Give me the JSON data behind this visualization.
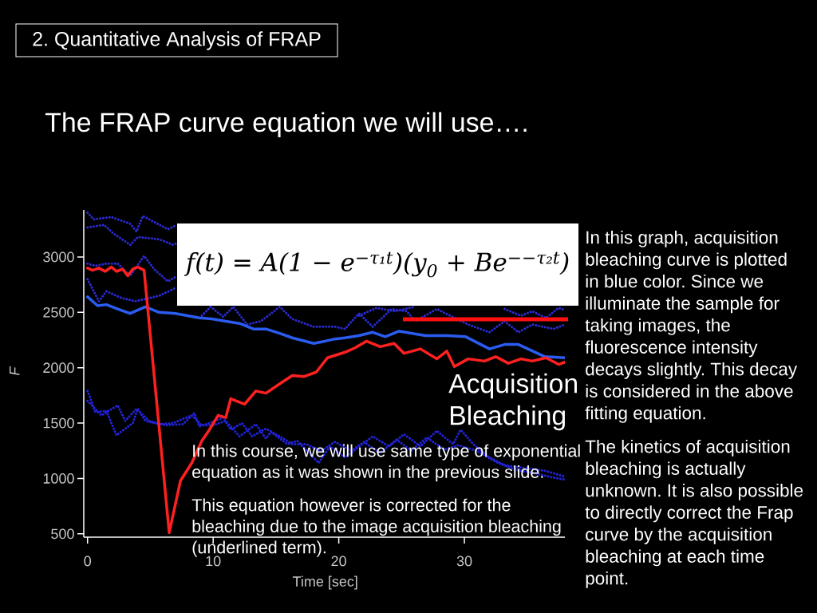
{
  "chart_data": {
    "type": "line",
    "title": "2. Quantitative Analysis of FRAP",
    "subtitle": "The FRAP curve equation we will use….",
    "xlabel": "Time [sec]",
    "ylabel": "F",
    "xlim": [
      -0.3,
      38
    ],
    "ylim": [
      470,
      3425
    ],
    "xticks": [
      0,
      10,
      20,
      30
    ],
    "yticks": [
      500,
      1000,
      1500,
      2000,
      2500,
      3000
    ],
    "grid": false,
    "marker": "none",
    "annotations": [
      "f(t) = A(1 − e$^{−τ₁t}$)(y$_{0}$ + Be$^{−−τ₂t}$)",
      "In this graph, acquisition bleaching curve is plotted in blue color. Since we illuminate the sample for taking images, the fluorescence intensity decays slightly. This decay is considered in the above fitting equation.",
      "The kinetics of acquisition bleaching is actually unknown. It is also possible to directly correct the Frap curve by the acquisition bleaching at each time point.",
      "In this course, we will use same type of exponential equation as it was shown in the previous slide.",
      "This equation however is corrected for the bleaching due to the image acquisition bleaching (underlined term).",
      "Acquisition Bleaching"
    ],
    "series": [
      {
        "color": "#2a2ad0",
        "line_style": "dotted",
        "x": [
          0,
          0.5,
          1.9,
          3.4,
          3.9,
          4.4,
          6.4,
          7.1
        ],
        "values": [
          3400,
          3340,
          3360,
          3300,
          3230,
          3370,
          3250,
          3290
        ]
      },
      {
        "color": "#2a2ad0",
        "line_style": "dotted",
        "x": [
          0,
          1.3,
          2.1,
          3.4,
          4.0,
          5.7,
          6.8,
          7.1
        ],
        "values": [
          3267,
          3290,
          3209,
          3110,
          3180,
          3160,
          3110,
          3125
        ]
      },
      {
        "color": "#2a2ad0",
        "line_style": "dotted",
        "x": [
          0,
          0.6,
          1.5,
          2.4,
          3.4,
          4.5,
          5.3,
          6.4,
          7.0,
          8.0,
          9.1,
          9.8,
          10.8,
          11.6,
          12.7,
          13.8,
          15.3,
          16.3,
          18.0,
          19.7,
          20.5,
          21.6,
          22.7,
          24.2,
          25.4,
          26.1,
          27.8,
          30.3,
          32.0,
          33.2,
          34.3,
          35.4,
          37.1,
          38
        ],
        "values": [
          2940,
          2920,
          2940,
          2940,
          2830,
          3010,
          2890,
          2780,
          2820,
          null,
          2470,
          2550,
          2460,
          2550,
          2390,
          2420,
          2550,
          2440,
          2370,
          2370,
          2350,
          2490,
          2370,
          2530,
          2510,
          2420,
          2530,
          2390,
          2320,
          2420,
          2320,
          2390,
          2350,
          2390
        ]
      },
      {
        "color": "#2a2ad0",
        "line_style": "dotted",
        "x": [
          0,
          0.9,
          1.5,
          2.7,
          3.8,
          5.7,
          7.0,
          8.0,
          21.6,
          23.0,
          24.5,
          26.0,
          27.0,
          33.2,
          34.5,
          35.4,
          36.5,
          37.5,
          38
        ],
        "values": [
          2800,
          2600,
          2690,
          2630,
          2600,
          2650,
          2720,
          null,
          2470,
          2540,
          2510,
          2550,
          null,
          2530,
          2470,
          2510,
          2450,
          2540,
          2520
        ]
      },
      {
        "color": "#2a5cf0",
        "line_style": "solid",
        "x": [
          0,
          0.8,
          1.5,
          2.4,
          3.4,
          4.6,
          5.7,
          7.0,
          8.9,
          10.0,
          11.0,
          12.1,
          13.2,
          14.2,
          15.3,
          16.3,
          18.0,
          18.9,
          19.7,
          20.5,
          21.6,
          22.7,
          23.7,
          24.8,
          26.9,
          28.6,
          30.1,
          32.0,
          33.2,
          34.3,
          36.4,
          38.0
        ],
        "values": [
          2640,
          2560,
          2570,
          2530,
          2490,
          2550,
          2500,
          2490,
          2450,
          2440,
          2420,
          2400,
          2350,
          2350,
          2310,
          2270,
          2220,
          2240,
          2260,
          2270,
          2290,
          2320,
          2280,
          2330,
          2290,
          2290,
          2280,
          2170,
          2210,
          2210,
          2100,
          2090
        ]
      },
      {
        "color": "#2222d8",
        "line_style": "dotted",
        "x": [
          0,
          0.3,
          0.6,
          1.5,
          2.3,
          3.6,
          4.0,
          4.6,
          5.7,
          6.8,
          8.3,
          9.1,
          10.0,
          11.0,
          12.1,
          13.4,
          14.2,
          14.6,
          15.9,
          16.7,
          18.4,
          19.3,
          20.5,
          22.7,
          24.0,
          25.2,
          26.5,
          27.8,
          29.1,
          29.7,
          30.7,
          32.0,
          33.2,
          35.0,
          36.4,
          37.9
        ],
        "values": [
          1790,
          1700,
          1600,
          1610,
          1390,
          1500,
          1630,
          1520,
          1490,
          1500,
          1570,
          1480,
          1480,
          1520,
          1380,
          1490,
          1360,
          1420,
          1310,
          1340,
          1140,
          1290,
          1190,
          1380,
          1290,
          1400,
          1290,
          1430,
          1310,
          1440,
          1310,
          1190,
          1120,
          1090,
          1070,
          1020
        ]
      },
      {
        "color": "#2222d8",
        "line_style": "dotted",
        "x": [
          0,
          1.1,
          2.4,
          3.0,
          3.9,
          4.9,
          6.2,
          7.6,
          8.5,
          8.9,
          9.7,
          10.8,
          11.4,
          12.3,
          13.1,
          14.2,
          15.3,
          16.3,
          17.4,
          18.6,
          19.7,
          21.0,
          22.0,
          23.3,
          24.6,
          25.8,
          27.0,
          28.4,
          29.5,
          31.0,
          32.5,
          34.0,
          35.5,
          37.0,
          38
        ],
        "values": [
          1700,
          1570,
          1660,
          1520,
          1630,
          1520,
          1480,
          1490,
          1590,
          1470,
          1500,
          1550,
          1440,
          1500,
          1380,
          1450,
          1380,
          1310,
          1310,
          1250,
          1330,
          1250,
          1330,
          1230,
          1350,
          1250,
          1370,
          1260,
          1300,
          1250,
          1150,
          1080,
          1050,
          1010,
          990
        ]
      },
      {
        "color": "#ff2020",
        "line_style": "solid",
        "x": [
          0,
          0.4,
          0.9,
          1.4,
          1.9,
          2.3,
          2.8,
          3.2,
          3.6,
          4.0,
          4.5,
          6.5,
          7.4,
          8.3,
          9.1,
          9.7,
          10.4,
          11.0,
          11.4,
          12.5,
          13.4,
          14.2,
          15.5,
          16.3,
          17.2,
          18.2,
          19.1,
          20.5,
          21.3,
          22.2,
          23.3,
          24.4,
          25.2,
          26.5,
          27.8,
          28.6,
          29.2,
          30.3,
          31.6,
          32.5,
          33.5,
          34.5,
          35.4,
          36.5,
          37.5,
          38
        ],
        "values": [
          2900,
          2880,
          2900,
          2870,
          2910,
          2870,
          2890,
          2830,
          2890,
          2910,
          2880,
          510,
          980,
          1140,
          1340,
          1440,
          1570,
          1550,
          1720,
          1670,
          1790,
          1770,
          1870,
          1930,
          1920,
          1960,
          2090,
          2140,
          2180,
          2240,
          2190,
          2220,
          2130,
          2170,
          2080,
          2150,
          2010,
          2080,
          2060,
          2100,
          2040,
          2080,
          2060,
          2090,
          2030,
          2050
        ]
      }
    ]
  }
}
